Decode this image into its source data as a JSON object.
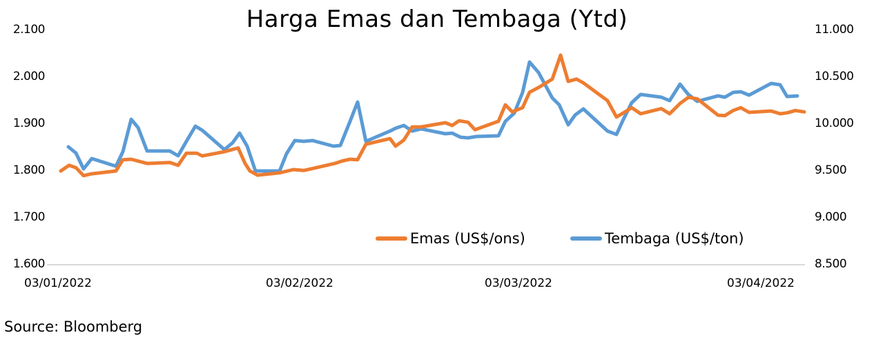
{
  "chart_data": {
    "type": "line",
    "title": "Harga Emas dan Tembaga (Ytd)",
    "xlabel": "",
    "ylabel_left": "",
    "ylabel_right": "",
    "x_ticks": [
      "03/01/2022",
      "03/02/2022",
      "03/03/2022",
      "03/04/2022"
    ],
    "y_left": {
      "ticks": [
        "2.100",
        "2.000",
        "1.900",
        "1.800",
        "1.700",
        "1.600"
      ],
      "range": [
        1600,
        2100
      ]
    },
    "y_right": {
      "ticks": [
        "11.000",
        "10.500",
        "10.000",
        "9.500",
        "9.000",
        "8.500"
      ],
      "range": [
        8500,
        11000
      ]
    },
    "grid": false,
    "legend_position": "bottom-right inside plot",
    "series": [
      {
        "name": "Emas (US$/ons)",
        "axis": "left",
        "color": "#ED7D31",
        "points": [
          [
            88,
            1800
          ],
          [
            100,
            1812
          ],
          [
            110,
            1807
          ],
          [
            121,
            1790
          ],
          [
            133,
            1794
          ],
          [
            168,
            1800
          ],
          [
            178,
            1824
          ],
          [
            190,
            1825
          ],
          [
            213,
            1816
          ],
          [
            246,
            1818
          ],
          [
            258,
            1812
          ],
          [
            270,
            1838
          ],
          [
            285,
            1838
          ],
          [
            293,
            1832
          ],
          [
            325,
            1841
          ],
          [
            337,
            1846
          ],
          [
            345,
            1849
          ],
          [
            355,
            1816
          ],
          [
            362,
            1800
          ],
          [
            373,
            1791
          ],
          [
            405,
            1796
          ],
          [
            425,
            1803
          ],
          [
            440,
            1801
          ],
          [
            455,
            1806
          ],
          [
            485,
            1816
          ],
          [
            495,
            1821
          ],
          [
            507,
            1825
          ],
          [
            518,
            1824
          ],
          [
            530,
            1857
          ],
          [
            565,
            1869
          ],
          [
            573,
            1853
          ],
          [
            585,
            1866
          ],
          [
            597,
            1894
          ],
          [
            610,
            1894
          ],
          [
            645,
            1903
          ],
          [
            655,
            1897
          ],
          [
            665,
            1907
          ],
          [
            678,
            1904
          ],
          [
            688,
            1888
          ],
          [
            722,
            1906
          ],
          [
            732,
            1941
          ],
          [
            742,
            1926
          ],
          [
            757,
            1935
          ],
          [
            767,
            1968
          ],
          [
            780,
            1978
          ],
          [
            800,
            1996
          ],
          [
            812,
            2047
          ],
          [
            823,
            1991
          ],
          [
            835,
            1996
          ],
          [
            845,
            1988
          ],
          [
            880,
            1950
          ],
          [
            893,
            1915
          ],
          [
            903,
            1924
          ],
          [
            915,
            1935
          ],
          [
            928,
            1922
          ],
          [
            958,
            1933
          ],
          [
            970,
            1922
          ],
          [
            985,
            1944
          ],
          [
            997,
            1957
          ],
          [
            1010,
            1954
          ],
          [
            1040,
            1919
          ],
          [
            1050,
            1918
          ],
          [
            1062,
            1929
          ],
          [
            1073,
            1935
          ],
          [
            1085,
            1925
          ],
          [
            1117,
            1928
          ],
          [
            1130,
            1922
          ],
          [
            1140,
            1924
          ],
          [
            1152,
            1929
          ],
          [
            1165,
            1926
          ]
        ]
      },
      {
        "name": "Tembaga (US$/ton)",
        "axis": "right",
        "color": "#5B9BD5",
        "points": [
          [
            99,
            9757
          ],
          [
            110,
            9691
          ],
          [
            121,
            9522
          ],
          [
            133,
            9632
          ],
          [
            168,
            9551
          ],
          [
            178,
            9706
          ],
          [
            190,
            10051
          ],
          [
            200,
            9963
          ],
          [
            213,
            9713
          ],
          [
            246,
            9713
          ],
          [
            258,
            9662
          ],
          [
            270,
            9816
          ],
          [
            283,
            9978
          ],
          [
            293,
            9934
          ],
          [
            325,
            9728
          ],
          [
            337,
            9801
          ],
          [
            347,
            9904
          ],
          [
            358,
            9765
          ],
          [
            370,
            9500
          ],
          [
            405,
            9500
          ],
          [
            415,
            9684
          ],
          [
            427,
            9824
          ],
          [
            440,
            9816
          ],
          [
            453,
            9824
          ],
          [
            483,
            9765
          ],
          [
            493,
            9772
          ],
          [
            507,
            10029
          ],
          [
            518,
            10235
          ],
          [
            530,
            9816
          ],
          [
            565,
            9926
          ],
          [
            573,
            9956
          ],
          [
            585,
            9985
          ],
          [
            597,
            9926
          ],
          [
            610,
            9949
          ],
          [
            645,
            9897
          ],
          [
            655,
            9904
          ],
          [
            667,
            9860
          ],
          [
            678,
            9853
          ],
          [
            690,
            9868
          ],
          [
            722,
            9875
          ],
          [
            732,
            10029
          ],
          [
            745,
            10118
          ],
          [
            757,
            10338
          ],
          [
            767,
            10662
          ],
          [
            780,
            10551
          ],
          [
            800,
            10279
          ],
          [
            810,
            10206
          ],
          [
            823,
            9993
          ],
          [
            833,
            10096
          ],
          [
            845,
            10162
          ],
          [
            880,
            9926
          ],
          [
            893,
            9890
          ],
          [
            903,
            10051
          ],
          [
            915,
            10228
          ],
          [
            928,
            10316
          ],
          [
            958,
            10287
          ],
          [
            970,
            10250
          ],
          [
            985,
            10426
          ],
          [
            997,
            10316
          ],
          [
            1010,
            10243
          ],
          [
            1040,
            10301
          ],
          [
            1050,
            10287
          ],
          [
            1062,
            10338
          ],
          [
            1073,
            10345
          ],
          [
            1085,
            10309
          ],
          [
            1117,
            10434
          ],
          [
            1130,
            10419
          ],
          [
            1140,
            10294
          ],
          [
            1155,
            10301
          ]
        ]
      }
    ]
  },
  "labels": {
    "title": "Harga Emas dan Tembaga (Ytd)",
    "source": "Source: Bloomberg",
    "legend_emas": "Emas (US$/ons)",
    "legend_tembaga": "Tembaga (US$/ton)",
    "x_ticks": [
      "03/01/2022",
      "03/02/2022",
      "03/03/2022",
      "03/04/2022"
    ],
    "y_left_ticks": [
      "2.100",
      "2.000",
      "1.900",
      "1.800",
      "1.700",
      "1.600"
    ],
    "y_right_ticks": [
      "11.000",
      "10.500",
      "10.000",
      "9.500",
      "9.000",
      "8.500"
    ]
  },
  "colors": {
    "emas": "#ED7D31",
    "tembaga": "#5B9BD5",
    "axis": "#D9D9D9"
  }
}
